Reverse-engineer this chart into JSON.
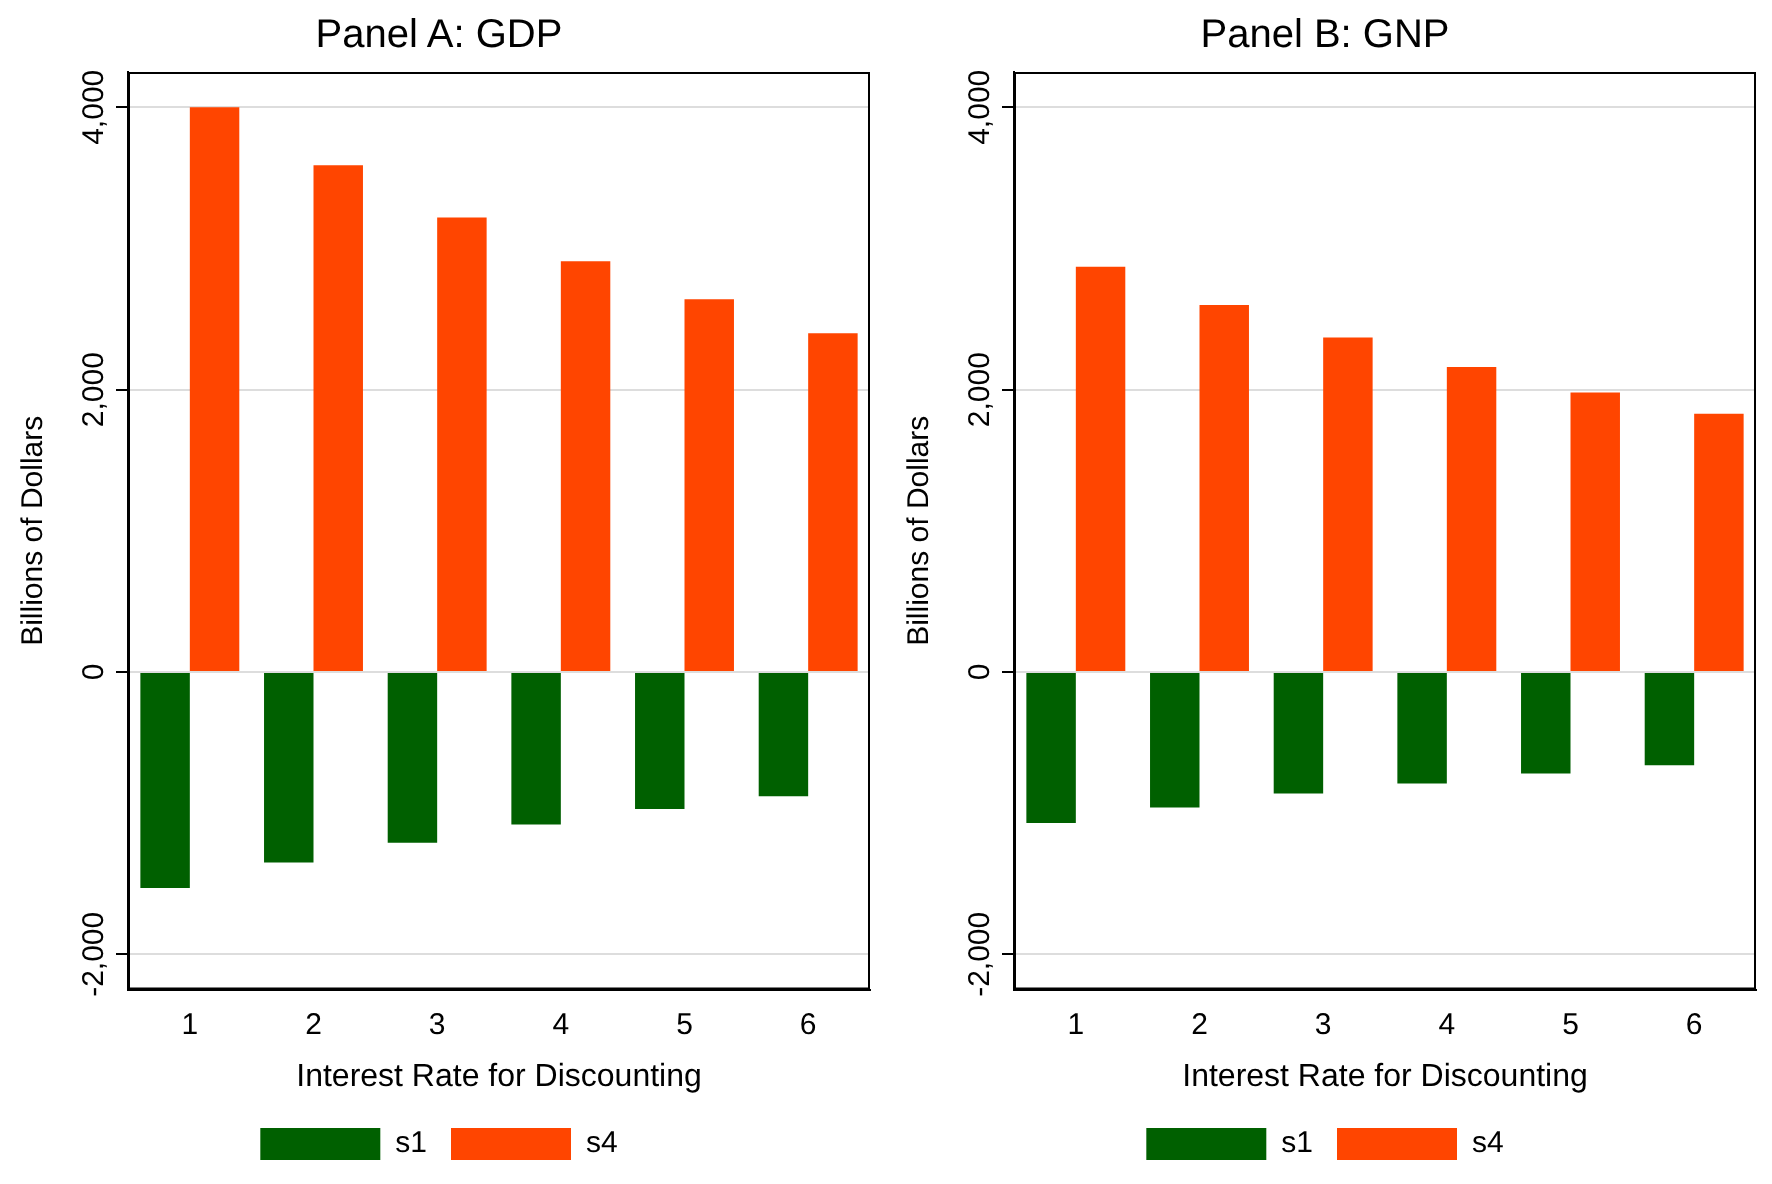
{
  "chart_data": [
    {
      "type": "bar",
      "title": "Panel A: GDP",
      "xlabel": "Interest Rate for Discounting",
      "ylabel": "Billions of Dollars",
      "categories": [
        "1",
        "2",
        "3",
        "4",
        "5",
        "6"
      ],
      "series": [
        {
          "name": "s1",
          "color": "#006000",
          "values": [
            -1530,
            -1350,
            -1210,
            -1080,
            -970,
            -880
          ]
        },
        {
          "name": "s4",
          "color": "#ff4500",
          "values": [
            4000,
            3590,
            3220,
            2910,
            2640,
            2400
          ]
        }
      ],
      "ylim": [
        -2250,
        4250
      ],
      "yticks": [
        {
          "value": -2000,
          "label": "-2,000"
        },
        0,
        {
          "value": 2000,
          "label": "2,000"
        },
        {
          "value": 4000,
          "label": "4,000"
        }
      ],
      "grid": "y",
      "legend": "bottom"
    },
    {
      "type": "bar",
      "title": "Panel B: GNP",
      "xlabel": "Interest Rate for Discounting",
      "ylabel": "Billions of Dollars",
      "categories": [
        "1",
        "2",
        "3",
        "4",
        "5",
        "6"
      ],
      "series": [
        {
          "name": "s1",
          "color": "#006000",
          "values": [
            -1070,
            -960,
            -860,
            -790,
            -720,
            -660
          ]
        },
        {
          "name": "s4",
          "color": "#ff4500",
          "values": [
            2870,
            2600,
            2370,
            2160,
            1980,
            1830
          ]
        }
      ],
      "ylim": [
        -2250,
        4250
      ],
      "yticks": [
        {
          "value": -2000,
          "label": "-2,000"
        },
        0,
        {
          "value": 2000,
          "label": "2,000"
        },
        {
          "value": 4000,
          "label": "4,000"
        }
      ],
      "grid": "y",
      "legend": "bottom"
    }
  ]
}
